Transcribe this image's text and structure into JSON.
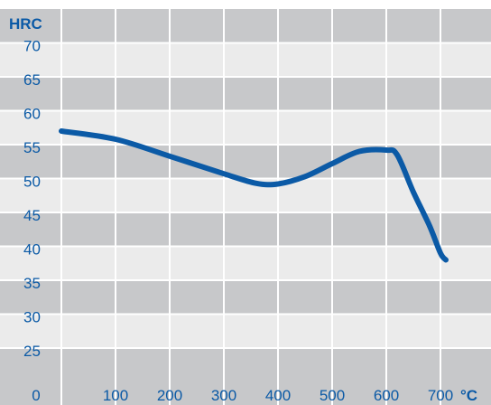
{
  "chart_data": {
    "type": "line",
    "y_unit": "HRC",
    "x_unit": "°C",
    "x_ticks": [
      "0",
      "100",
      "200",
      "300",
      "400",
      "500",
      "600",
      "700"
    ],
    "y_ticks": [
      "70",
      "65",
      "60",
      "55",
      "50",
      "45",
      "40",
      "35",
      "30",
      "25"
    ],
    "xlim": [
      0,
      800
    ],
    "ylim": [
      20,
      75
    ],
    "grid": true,
    "series": [
      {
        "color": "#0b5aa6",
        "points": [
          [
            0,
            59
          ],
          [
            100,
            57.8
          ],
          [
            200,
            55.3
          ],
          [
            300,
            52.7
          ],
          [
            360,
            51.3
          ],
          [
            400,
            51.2
          ],
          [
            450,
            52.3
          ],
          [
            500,
            54.2
          ],
          [
            550,
            56.0
          ],
          [
            600,
            56.2
          ],
          [
            620,
            55.5
          ],
          [
            650,
            50.0
          ],
          [
            680,
            45.0
          ],
          [
            700,
            41.0
          ],
          [
            710,
            40.0
          ]
        ]
      }
    ]
  },
  "colors": {
    "dark_band": "#c7c8ca",
    "light_band": "#ebebeb",
    "gutter": "#f1f1f1",
    "line": "#0b5aa6",
    "text": "#0b5aa6"
  }
}
